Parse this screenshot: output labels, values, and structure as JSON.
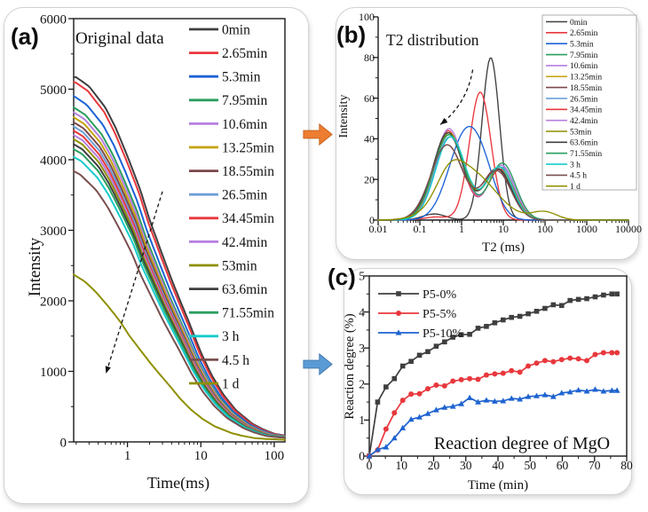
{
  "figure": {
    "background": "#ffffff",
    "panels": {
      "a": {
        "label": "(a)",
        "title": "Original data",
        "xlabel": "Time(ms)",
        "ylabel": "Intensity"
      },
      "b": {
        "label": "(b)",
        "title": "T2 distribution",
        "xlabel": "T2 (ms)",
        "ylabel": "Intensity"
      },
      "c": {
        "label": "(c)",
        "title": "Reaction degree of MgO",
        "xlabel": "Time (min)",
        "ylabel": "Reaction degree (%)"
      }
    },
    "flow_arrows": [
      {
        "name": "orange-right-arrow",
        "fill": "#ED7D31",
        "stroke": "#c4611c"
      },
      {
        "name": "blue-right-arrow",
        "fill": "#5B9BD5",
        "stroke": "#3f76ad"
      }
    ]
  },
  "chart_data": [
    {
      "panel": "a",
      "type": "line",
      "title": "Original data",
      "xlabel": "Time(ms)",
      "ylabel": "Intensity",
      "xscale": "log",
      "xlim": [
        0.185,
        140
      ],
      "ylim": [
        0,
        6000
      ],
      "xticks": [
        1,
        10,
        100
      ],
      "yticks": [
        0,
        1000,
        2000,
        3000,
        4000,
        5000,
        6000
      ],
      "legend_position": "top-right-inside",
      "grid": false,
      "master_curve": {
        "x": [
          0.2,
          0.3,
          0.5,
          0.7,
          1,
          1.5,
          2,
          3,
          4,
          5,
          7,
          10,
          14,
          20,
          30,
          50,
          70,
          100,
          140,
          280
        ],
        "y": [
          5170,
          5040,
          4740,
          4440,
          4050,
          3570,
          3150,
          2650,
          2300,
          2050,
          1680,
          1270,
          950,
          680,
          450,
          260,
          180,
          115,
          90,
          60
        ]
      },
      "series": [
        {
          "label": "0min",
          "color": "#3f3f3f",
          "start_intensity": 5170,
          "decay_speed": 1
        },
        {
          "label": "2.65min",
          "color": "#e8383d",
          "start_intensity": 5090,
          "decay_speed": 1.04
        },
        {
          "label": "5.3min",
          "color": "#1c63d6",
          "start_intensity": 4880,
          "decay_speed": 1.08
        },
        {
          "label": "7.95min",
          "color": "#2b9e5e",
          "start_intensity": 4720,
          "decay_speed": 1.12
        },
        {
          "label": "10.6min",
          "color": "#b77fe0",
          "start_intensity": 4650,
          "decay_speed": 1.14
        },
        {
          "label": "13.25min",
          "color": "#c3a30a",
          "start_intensity": 4580,
          "decay_speed": 1.16
        },
        {
          "label": "18.55min",
          "color": "#7a474b",
          "start_intensity": 4510,
          "decay_speed": 1.18
        },
        {
          "label": "26.5min",
          "color": "#6d9ed6",
          "start_intensity": 4450,
          "decay_speed": 1.2
        },
        {
          "label": "34.45min",
          "color": "#e8383d",
          "start_intensity": 4390,
          "decay_speed": 1.21
        },
        {
          "label": "42.4min",
          "color": "#b77fe0",
          "start_intensity": 4330,
          "decay_speed": 1.22
        },
        {
          "label": "53min",
          "color": "#8f8f00",
          "start_intensity": 4270,
          "decay_speed": 1.23
        },
        {
          "label": "63.6min",
          "color": "#3f3f3f",
          "start_intensity": 4200,
          "decay_speed": 1.24
        },
        {
          "label": "71.55min",
          "color": "#2b9e5e",
          "start_intensity": 4130,
          "decay_speed": 1.25
        },
        {
          "label": "3 h",
          "color": "#16cbcb",
          "start_intensity": 4020,
          "decay_speed": 1.27
        },
        {
          "label": "4.5 h",
          "color": "#7a4f4f",
          "start_intensity": 3820,
          "decay_speed": 1.32
        },
        {
          "label": "1 d",
          "color": "#8f8f00",
          "start_intensity": 2350,
          "decay_speed": 1.9
        }
      ],
      "annotation_arrow": {
        "style": "dashed",
        "from_xy": [
          3.0,
          3550
        ],
        "to_xy": [
          0.51,
          970
        ]
      }
    },
    {
      "panel": "b",
      "type": "line",
      "title": "T2 distribution",
      "xlabel": "T2 (ms)",
      "ylabel": "Intensity",
      "xscale": "log",
      "xlim": [
        0.01,
        10000
      ],
      "ylim": [
        0,
        100
      ],
      "xticks": [
        0.01,
        0.1,
        1,
        10,
        100,
        1000,
        10000
      ],
      "yticks": [
        0,
        20,
        40,
        60,
        80,
        100
      ],
      "legend_position": "top-right-inside-boxed",
      "grid": false,
      "peaks_format": [
        "center_ms",
        "height",
        "log_width"
      ],
      "series": [
        {
          "label": "0min",
          "color": "#3f3f3f",
          "peaks": [
            [
              5,
              80,
              0.21
            ],
            [
              0.22,
              3,
              0.28
            ]
          ]
        },
        {
          "label": "2.65min",
          "color": "#e8383d",
          "peaks": [
            [
              2.8,
              63,
              0.26
            ],
            [
              0.25,
              1.5,
              0.3
            ]
          ]
        },
        {
          "label": "5.3min",
          "color": "#1c63d6",
          "peaks": [
            [
              1.2,
              40,
              0.4
            ],
            [
              3.5,
              14,
              0.32
            ]
          ]
        },
        {
          "label": "7.95min",
          "color": "#2b9e5e",
          "peaks": [
            [
              0.5,
              42,
              0.36
            ],
            [
              8,
              26,
              0.34
            ]
          ]
        },
        {
          "label": "10.6min",
          "color": "#b77fe0",
          "peaks": [
            [
              0.48,
              44,
              0.35
            ],
            [
              9,
              27,
              0.32
            ]
          ]
        },
        {
          "label": "13.25min",
          "color": "#c3a30a",
          "peaks": [
            [
              0.5,
              43,
              0.36
            ],
            [
              8,
              25,
              0.34
            ]
          ]
        },
        {
          "label": "18.55min",
          "color": "#7a474b",
          "peaks": [
            [
              0.45,
              37,
              0.38
            ],
            [
              7,
              25,
              0.34
            ]
          ]
        },
        {
          "label": "26.5min",
          "color": "#6d9ed6",
          "peaks": [
            [
              0.52,
              41,
              0.36
            ],
            [
              9,
              26,
              0.32
            ]
          ]
        },
        {
          "label": "34.45min",
          "color": "#e8383d",
          "peaks": [
            [
              0.48,
              44,
              0.35
            ],
            [
              8.5,
              25,
              0.32
            ]
          ]
        },
        {
          "label": "42.4min",
          "color": "#b77fe0",
          "peaks": [
            [
              0.5,
              45,
              0.35
            ],
            [
              9,
              27,
              0.32
            ]
          ]
        },
        {
          "label": "53min",
          "color": "#8f8f00",
          "peaks": [
            [
              0.5,
              43,
              0.36
            ],
            [
              8,
              26,
              0.33
            ]
          ]
        },
        {
          "label": "63.6min",
          "color": "#3f3f3f",
          "peaks": [
            [
              0.47,
              43,
              0.36
            ],
            [
              7.5,
              25,
              0.33
            ]
          ]
        },
        {
          "label": "71.55min",
          "color": "#2b9e5e",
          "peaks": [
            [
              0.5,
              42,
              0.37
            ],
            [
              9.5,
              28,
              0.32
            ]
          ]
        },
        {
          "label": "3 h",
          "color": "#16cbcb",
          "peaks": [
            [
              0.55,
              41,
              0.36
            ],
            [
              8,
              26,
              0.32
            ]
          ]
        },
        {
          "label": "4.5 h",
          "color": "#7a4f4f",
          "peaks": [
            [
              0.45,
              37,
              0.39
            ],
            [
              7,
              24,
              0.34
            ]
          ]
        },
        {
          "label": "1 d",
          "color": "#8f8f00",
          "peaks": [
            [
              1.5,
              24,
              0.62
            ],
            [
              0.5,
              10,
              0.3
            ],
            [
              95,
              4,
              0.3
            ]
          ]
        }
      ],
      "annotation_arrow": {
        "style": "dashed-curved",
        "from_xy": [
          1.85,
          74
        ],
        "to_xy": [
          0.31,
          47
        ]
      }
    },
    {
      "panel": "c",
      "type": "scatter-line",
      "title": "Reaction degree of MgO",
      "xlabel": "Time (min)",
      "ylabel": "Reaction degree (%)",
      "xscale": "linear",
      "xlim": [
        0,
        80
      ],
      "ylim": [
        0,
        5
      ],
      "xticks": [
        0,
        10,
        20,
        30,
        40,
        50,
        60,
        70,
        80
      ],
      "yticks": [
        0,
        1,
        2,
        3,
        4,
        5
      ],
      "legend_position": "top-left-inside",
      "grid": false,
      "x": [
        0,
        2.6,
        5.2,
        7.8,
        10.4,
        13,
        15.6,
        18.2,
        20.8,
        23.4,
        26,
        28.6,
        31.2,
        33.8,
        36.4,
        39,
        41.6,
        44.2,
        46.8,
        49.4,
        52,
        54.6,
        57.2,
        59.8,
        62.4,
        65,
        67.6,
        70.2,
        72.8,
        75.4,
        77
      ],
      "series": [
        {
          "label": "P5-0%",
          "color": "#3f3f3f",
          "marker": "square",
          "values": [
            0,
            1.5,
            1.92,
            2.15,
            2.5,
            2.63,
            2.8,
            2.9,
            3.05,
            3.17,
            3.3,
            3.37,
            3.38,
            3.55,
            3.6,
            3.7,
            3.78,
            3.85,
            3.88,
            3.95,
            4.02,
            4.1,
            4.2,
            4.18,
            4.32,
            4.35,
            4.37,
            4.42,
            4.47,
            4.5,
            4.5
          ]
        },
        {
          "label": "P5-5%",
          "color": "#e8383d",
          "marker": "circle",
          "values": [
            0,
            0.17,
            0.75,
            1.2,
            1.55,
            1.72,
            1.73,
            1.87,
            1.97,
            1.95,
            2.08,
            2.12,
            2.15,
            2.13,
            2.25,
            2.28,
            2.3,
            2.37,
            2.33,
            2.5,
            2.58,
            2.65,
            2.62,
            2.68,
            2.72,
            2.7,
            2.65,
            2.82,
            2.87,
            2.87,
            2.87
          ]
        },
        {
          "label": "P5-10%",
          "color": "#1e63d0",
          "marker": "triangle",
          "values": [
            0,
            0.18,
            0.25,
            0.5,
            0.78,
            1.02,
            1.08,
            1.18,
            1.28,
            1.35,
            1.38,
            1.45,
            1.62,
            1.5,
            1.55,
            1.52,
            1.53,
            1.6,
            1.58,
            1.65,
            1.67,
            1.7,
            1.65,
            1.75,
            1.78,
            1.83,
            1.8,
            1.85,
            1.8,
            1.82,
            1.82
          ]
        }
      ]
    }
  ]
}
